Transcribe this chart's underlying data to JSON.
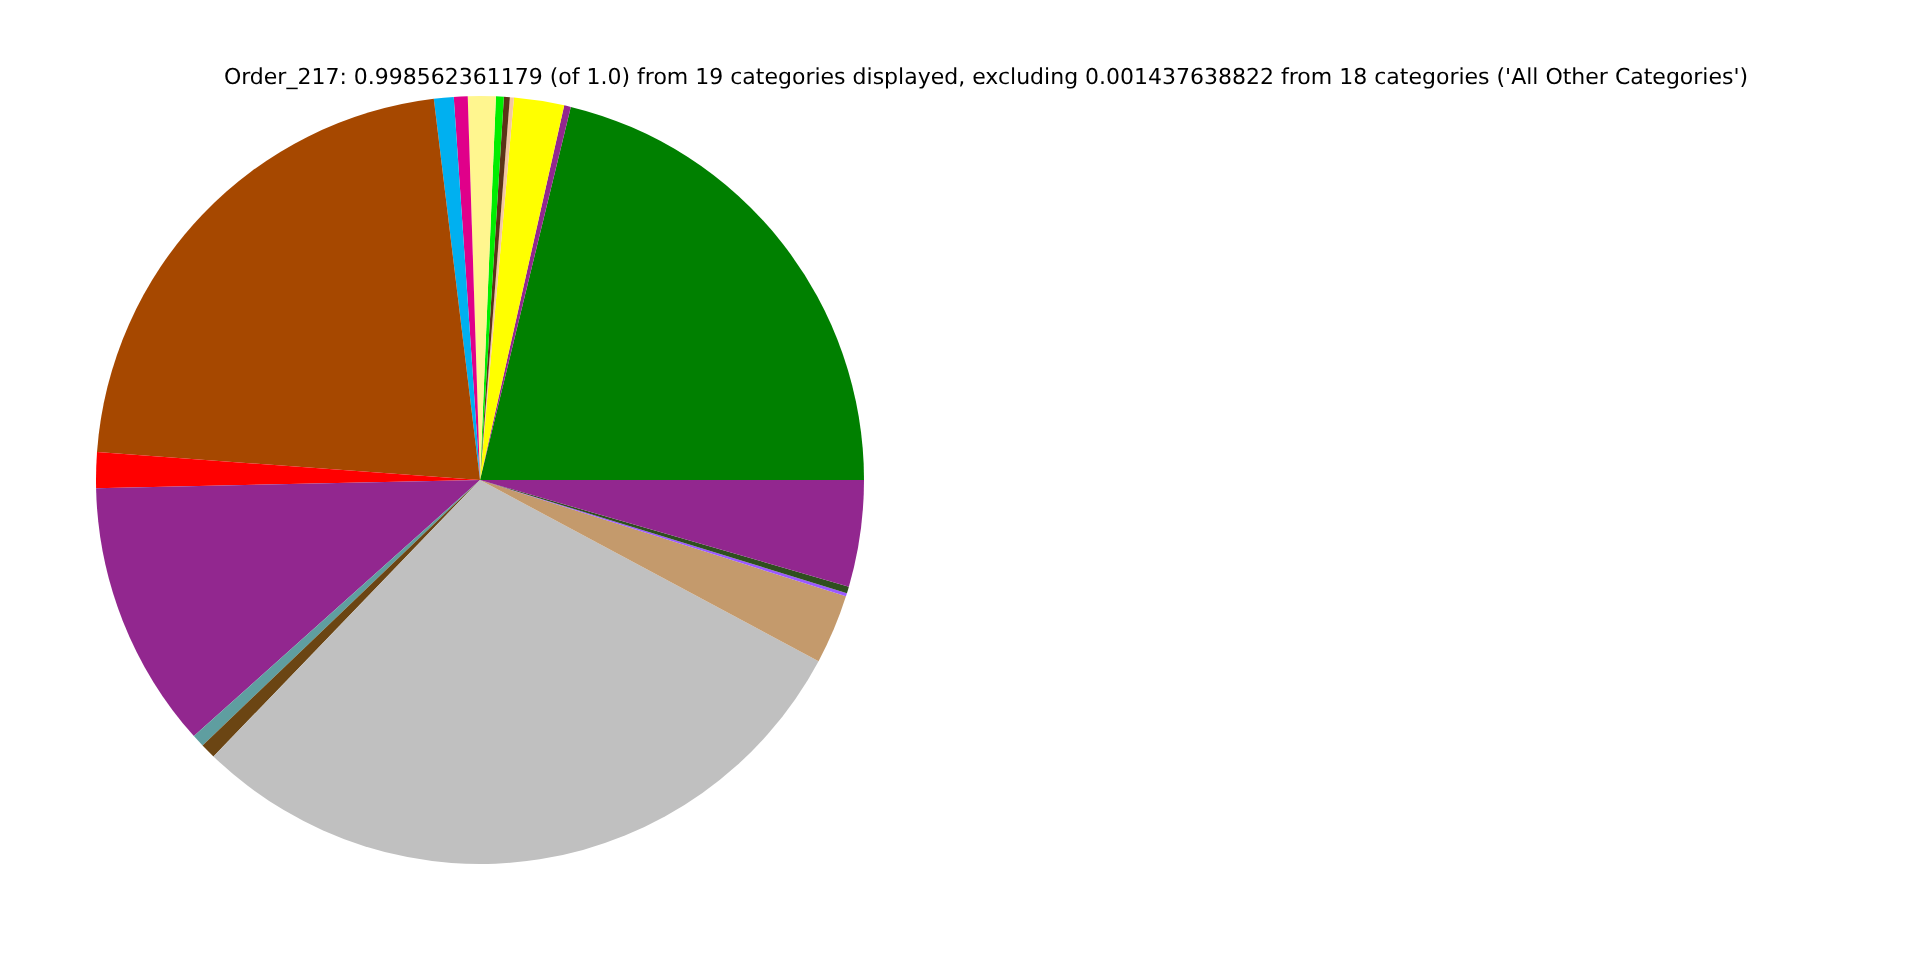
{
  "chart_data": {
    "type": "pie",
    "title": "Order_217: 0.998562361179 (of 1.0) from 19 categories displayed, excluding 0.001437638822 from 18 categories ('All Other Categories')",
    "categories": [
      null,
      null,
      null,
      null,
      null,
      null,
      null,
      null,
      null,
      null,
      null,
      null,
      null,
      null,
      null,
      null,
      null,
      null,
      null
    ],
    "values": [
      21.2,
      0.28,
      2.11,
      0.17,
      0.25,
      0.33,
      1.17,
      0.58,
      0.83,
      21.92,
      1.5,
      11.28,
      0.53,
      0.64,
      29.39,
      2.92,
      0.14,
      0.28,
      4.48
    ],
    "colors": [
      "#008000",
      "#92278f",
      "#ffff00",
      "#f4c7a0",
      "#5c3317",
      "#00ee00",
      "#fff68f",
      "#e0008a",
      "#00b0f0",
      "#a64800",
      "#ff0000",
      "#92278f",
      "#5f9ea0",
      "#6b4513",
      "#c0c0c0",
      "#c49a6c",
      "#9b59ff",
      "#2f4f1f",
      "#92278f"
    ],
    "legend": false
  }
}
